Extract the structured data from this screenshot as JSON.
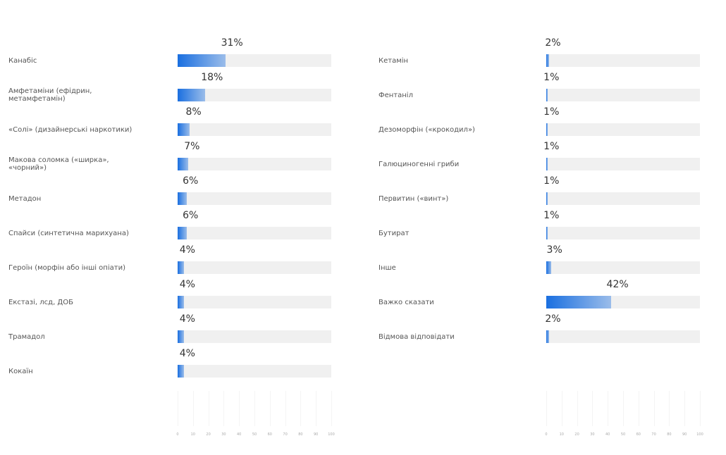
{
  "chart_data": [
    {
      "type": "bar",
      "categories": [
        "Канабіс",
        "Амфетаміни (ефідрин, метамфетамін)",
        "«Солі» (дизайнерські наркотики)",
        "Макова соломка («ширка», «чорний»)",
        "Метадон",
        "Спайси (синтетична марихуана)",
        "Героїн (морфін або інші опіати)",
        "Екстазі, лсд, ДОБ",
        "Трамадол",
        "Кокаїн"
      ],
      "values": [
        31,
        18,
        8,
        7,
        6,
        6,
        4,
        4,
        4,
        4
      ],
      "value_labels": [
        "31%",
        "18%",
        "8%",
        "7%",
        "6%",
        "6%",
        "4%",
        "4%",
        "4%",
        "4%"
      ],
      "xlim": [
        0,
        100
      ],
      "xticks": [
        0,
        10,
        20,
        30,
        40,
        50,
        60,
        70,
        80,
        90,
        100
      ],
      "color": "#1a6fe0"
    },
    {
      "type": "bar",
      "categories": [
        "Кетамін",
        "Фентаніл",
        "Дезоморфін («крокодил»)",
        "Галюциногенні гриби",
        "Первитин («винт»)",
        "Бутират",
        "Інше",
        "Важко сказати",
        "Відмова відповідати"
      ],
      "values": [
        2,
        1,
        1,
        1,
        1,
        1,
        3,
        42,
        2
      ],
      "value_labels": [
        "2%",
        "1%",
        "1%",
        "1%",
        "1%",
        "1%",
        "3%",
        "42%",
        "2%"
      ],
      "xlim": [
        0,
        100
      ],
      "xticks": [
        0,
        10,
        20,
        30,
        40,
        50,
        60,
        70,
        80,
        90,
        100
      ],
      "color": "#1a6fe0"
    }
  ]
}
